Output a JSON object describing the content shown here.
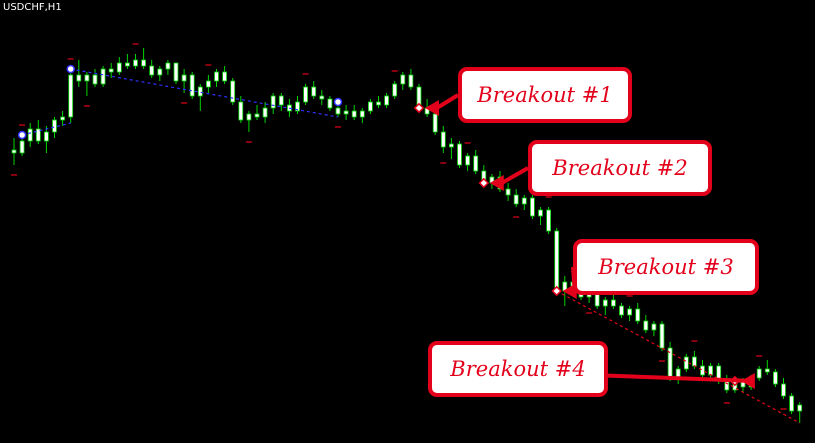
{
  "chart_title": "USDCHF,H1",
  "colors": {
    "background": "#000000",
    "bull_candle": "#ffffff",
    "bear_candle": "#ffffff",
    "wick": "#00d400",
    "trend_pre": "#3030ff",
    "trend_post": "#e3001b",
    "pivot_marker": "#e3001b",
    "fractal_marker": "#e3001b",
    "callout_border": "#e3001b",
    "callout_text": "#e3001b"
  },
  "callouts": [
    {
      "label": "Breakout #1"
    },
    {
      "label": "Breakout #2"
    },
    {
      "label": "Breakout #3"
    },
    {
      "label": "Breakout #4"
    }
  ],
  "chart_data": {
    "type": "candlestick",
    "title": "USDCHF,H1",
    "xlabel": "",
    "ylabel": "",
    "grid": false,
    "ohlc": [
      [
        9.1,
        9.5,
        8.6,
        9.0
      ],
      [
        9.0,
        9.6,
        8.9,
        9.4
      ],
      [
        9.4,
        10.0,
        9.2,
        9.8
      ],
      [
        9.8,
        10.1,
        9.3,
        9.4
      ],
      [
        9.4,
        9.9,
        9.0,
        9.7
      ],
      [
        9.7,
        10.2,
        9.5,
        10.1
      ],
      [
        10.1,
        10.4,
        9.9,
        10.2
      ],
      [
        10.2,
        11.8,
        10.0,
        11.6
      ],
      [
        11.6,
        12.1,
        11.2,
        11.4
      ],
      [
        11.4,
        11.7,
        10.9,
        11.6
      ],
      [
        11.6,
        11.8,
        11.2,
        11.3
      ],
      [
        11.3,
        11.9,
        11.2,
        11.8
      ],
      [
        11.8,
        12.0,
        11.5,
        11.7
      ],
      [
        11.7,
        12.2,
        11.6,
        12.0
      ],
      [
        12.0,
        12.3,
        11.8,
        11.9
      ],
      [
        11.9,
        12.3,
        11.8,
        12.1
      ],
      [
        12.1,
        12.5,
        11.8,
        11.9
      ],
      [
        11.9,
        12.1,
        11.5,
        11.6
      ],
      [
        11.6,
        11.9,
        11.4,
        11.8
      ],
      [
        11.8,
        12.1,
        11.6,
        12.0
      ],
      [
        12.0,
        12.0,
        11.3,
        11.4
      ],
      [
        11.4,
        11.8,
        11.0,
        11.6
      ],
      [
        11.6,
        11.7,
        10.8,
        10.9
      ],
      [
        10.9,
        11.3,
        10.4,
        11.2
      ],
      [
        11.2,
        11.6,
        11.0,
        11.4
      ],
      [
        11.4,
        11.8,
        11.2,
        11.7
      ],
      [
        11.7,
        11.9,
        11.3,
        11.4
      ],
      [
        11.4,
        11.5,
        10.6,
        10.7
      ],
      [
        10.7,
        10.9,
        10.0,
        10.1
      ],
      [
        10.1,
        10.4,
        9.7,
        10.3
      ],
      [
        10.3,
        10.6,
        10.1,
        10.2
      ],
      [
        10.2,
        10.7,
        10.0,
        10.5
      ],
      [
        10.5,
        11.0,
        10.3,
        10.9
      ],
      [
        10.9,
        11.0,
        10.4,
        10.6
      ],
      [
        10.6,
        10.8,
        10.2,
        10.4
      ],
      [
        10.4,
        10.9,
        10.3,
        10.7
      ],
      [
        10.7,
        11.3,
        10.6,
        11.2
      ],
      [
        11.2,
        11.4,
        10.8,
        10.9
      ],
      [
        10.9,
        11.1,
        10.6,
        10.8
      ],
      [
        10.8,
        10.9,
        10.4,
        10.5
      ],
      [
        10.5,
        10.7,
        10.2,
        10.3
      ],
      [
        10.3,
        10.6,
        10.1,
        10.4
      ],
      [
        10.4,
        10.6,
        10.1,
        10.2
      ],
      [
        10.2,
        10.5,
        10.0,
        10.4
      ],
      [
        10.4,
        10.8,
        10.3,
        10.7
      ],
      [
        10.7,
        10.9,
        10.5,
        10.6
      ],
      [
        10.6,
        11.0,
        10.5,
        10.9
      ],
      [
        10.9,
        11.4,
        10.8,
        11.3
      ],
      [
        11.3,
        11.7,
        11.1,
        11.6
      ],
      [
        11.6,
        11.8,
        11.1,
        11.2
      ],
      [
        11.2,
        11.3,
        10.4,
        10.5
      ],
      [
        10.5,
        10.8,
        10.2,
        10.3
      ],
      [
        10.3,
        10.4,
        9.6,
        9.7
      ],
      [
        9.7,
        9.9,
        9.0,
        9.2
      ],
      [
        9.2,
        9.5,
        8.8,
        9.3
      ],
      [
        9.3,
        9.4,
        8.5,
        8.6
      ],
      [
        8.6,
        9.0,
        8.4,
        8.9
      ],
      [
        8.9,
        9.1,
        8.3,
        8.4
      ],
      [
        8.4,
        8.6,
        7.9,
        8.0
      ],
      [
        8.0,
        8.3,
        7.8,
        8.2
      ],
      [
        8.2,
        8.4,
        7.7,
        7.8
      ],
      [
        7.8,
        8.0,
        7.4,
        7.6
      ],
      [
        7.6,
        7.8,
        7.2,
        7.3
      ],
      [
        7.3,
        7.6,
        7.1,
        7.5
      ],
      [
        7.5,
        7.6,
        6.8,
        6.9
      ],
      [
        6.9,
        7.2,
        6.6,
        7.1
      ],
      [
        7.1,
        7.2,
        6.3,
        6.4
      ],
      [
        6.4,
        6.5,
        4.3,
        4.4
      ],
      [
        4.4,
        4.9,
        3.9,
        4.7
      ],
      [
        4.7,
        5.0,
        4.3,
        4.5
      ],
      [
        4.5,
        4.7,
        4.1,
        4.2
      ],
      [
        4.2,
        4.6,
        4.0,
        4.4
      ],
      [
        4.4,
        4.5,
        3.8,
        3.9
      ],
      [
        3.9,
        4.2,
        3.6,
        4.1
      ],
      [
        4.1,
        4.3,
        3.8,
        3.9
      ],
      [
        3.9,
        4.0,
        3.5,
        3.6
      ],
      [
        3.6,
        3.9,
        3.4,
        3.8
      ],
      [
        3.8,
        4.0,
        3.3,
        3.4
      ],
      [
        3.4,
        3.6,
        3.0,
        3.1
      ],
      [
        3.1,
        3.4,
        2.9,
        3.3
      ],
      [
        3.3,
        3.4,
        2.4,
        2.5
      ],
      [
        2.5,
        2.7,
        1.4,
        1.5
      ],
      [
        1.5,
        1.9,
        1.3,
        1.8
      ],
      [
        1.8,
        2.3,
        1.7,
        2.2
      ],
      [
        2.2,
        2.4,
        1.8,
        1.9
      ],
      [
        1.9,
        2.1,
        1.5,
        1.6
      ],
      [
        1.6,
        2.0,
        1.5,
        1.9
      ],
      [
        1.9,
        2.0,
        1.3,
        1.4
      ],
      [
        1.4,
        1.6,
        1.0,
        1.1
      ],
      [
        1.1,
        1.5,
        1.0,
        1.4
      ],
      [
        1.4,
        1.5,
        1.0,
        1.2
      ],
      [
        1.2,
        1.6,
        1.1,
        1.5
      ],
      [
        1.5,
        1.9,
        1.4,
        1.8
      ],
      [
        1.8,
        2.1,
        1.6,
        1.7
      ],
      [
        1.7,
        1.8,
        1.2,
        1.3
      ],
      [
        1.3,
        1.5,
        0.8,
        0.9
      ],
      [
        0.9,
        1.0,
        0.3,
        0.4
      ],
      [
        0.4,
        0.7,
        0.0,
        0.6
      ]
    ],
    "pivot_indices": [
      1,
      7,
      40
    ],
    "breakout_indices": [
      50,
      58,
      67,
      89
    ],
    "fractal_high_indices": [
      1,
      7,
      15,
      24,
      36,
      47,
      56,
      66,
      76,
      84,
      92
    ],
    "fractal_low_indices": [
      0,
      9,
      21,
      29,
      40,
      53,
      62,
      71,
      80,
      88,
      95
    ],
    "ylim": [
      -0.5,
      13.5
    ]
  }
}
